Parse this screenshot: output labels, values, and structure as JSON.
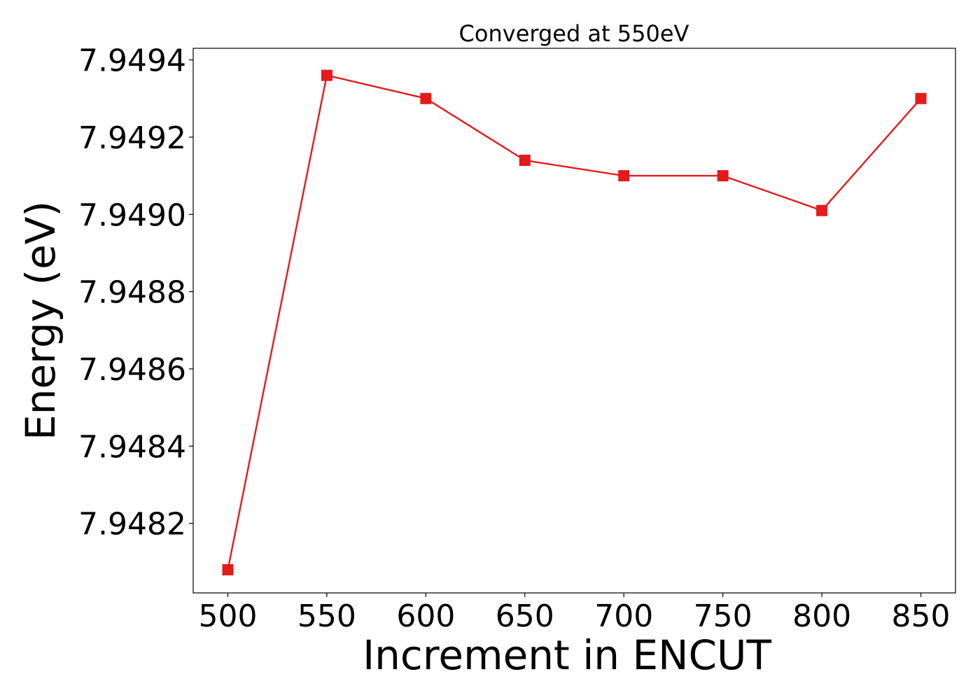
{
  "chart_data": {
    "type": "line",
    "title": "Converged at 550eV",
    "xlabel": "Increment in ENCUT",
    "ylabel": "Energy (eV)",
    "x": [
      500,
      550,
      600,
      650,
      700,
      750,
      800,
      850
    ],
    "series": [
      {
        "values": [
          7.94808,
          7.94936,
          7.9493,
          7.94914,
          7.9491,
          7.9491,
          7.94901,
          7.9493
        ],
        "color": "#e41a1c",
        "marker": "square"
      }
    ],
    "xticks": [
      500,
      550,
      600,
      650,
      700,
      750,
      800,
      850
    ],
    "xtick_labels": [
      "500",
      "550",
      "600",
      "650",
      "700",
      "750",
      "800",
      "850"
    ],
    "yticks": [
      7.9482,
      7.9484,
      7.9486,
      7.9488,
      7.949,
      7.9492,
      7.9494
    ],
    "ytick_labels": [
      "7.9482",
      "7.9484",
      "7.9486",
      "7.9488",
      "7.9490",
      "7.9492",
      "7.9494"
    ],
    "xlim": [
      482.5,
      867.5
    ],
    "ylim": [
      7.94802,
      7.94943
    ],
    "grid": false,
    "legend": "none"
  }
}
